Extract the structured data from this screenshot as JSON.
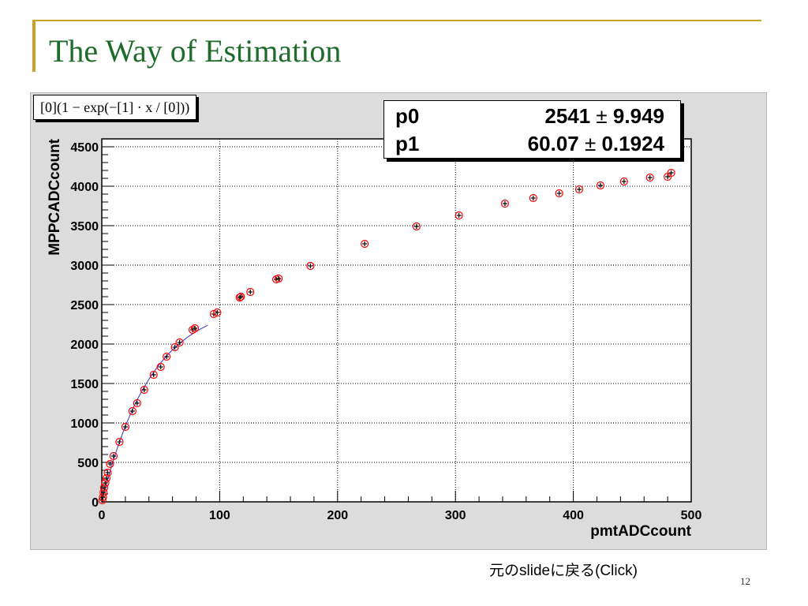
{
  "slide": {
    "title": "The Way of Estimation",
    "page_number": "12",
    "back_link": "元のslideに戻る(Click)",
    "accent_color": "#c9a227",
    "title_color": "#1f6b2c"
  },
  "fit": {
    "formula": "[0](1 − exp(−[1] · x / [0]))",
    "params": [
      {
        "name": "p0",
        "value": "2541",
        "error": "9.949"
      },
      {
        "name": "p1",
        "value": "60.07",
        "error": "0.1924"
      }
    ]
  },
  "chart_data": {
    "type": "scatter",
    "title": "",
    "xlabel": "pmtADCcount",
    "ylabel": "MPPCADCcount",
    "xlim": [
      0,
      500
    ],
    "ylim": [
      0,
      4600
    ],
    "xticks": [
      0,
      100,
      200,
      300,
      400,
      500
    ],
    "yticks": [
      0,
      500,
      1000,
      1500,
      2000,
      2500,
      3000,
      3500,
      4000,
      4500
    ],
    "xtick_labels": [
      "0",
      "100",
      "200",
      "300",
      "400",
      "500"
    ],
    "ytick_labels": [
      "0",
      "500",
      "1000",
      "1500",
      "2000",
      "2500",
      "3000",
      "3500",
      "4000",
      "4500"
    ],
    "grid": true,
    "marker_color": "#ff0000",
    "errorbar_color": "#000000",
    "fit_color": "#3333cc",
    "fit_params": {
      "p0": 2541,
      "p1": 60.07
    },
    "fit_range": [
      0,
      90
    ],
    "series": [
      {
        "x": [
          0.5,
          1,
          1.5,
          2,
          3,
          4,
          5,
          7,
          10,
          15,
          20,
          26,
          30,
          36,
          44,
          50,
          55,
          62,
          66,
          77,
          79,
          95,
          98,
          117,
          118,
          126,
          148,
          150,
          177,
          223,
          267,
          303,
          342,
          366,
          388,
          405,
          423,
          443,
          465,
          480,
          483
        ],
        "y": [
          20,
          60,
          120,
          180,
          240,
          300,
          370,
          480,
          580,
          760,
          950,
          1150,
          1250,
          1420,
          1610,
          1710,
          1840,
          1960,
          2020,
          2180,
          2200,
          2380,
          2400,
          2590,
          2600,
          2660,
          2820,
          2830,
          2990,
          3270,
          3490,
          3630,
          3780,
          3850,
          3910,
          3960,
          4010,
          4060,
          4110,
          4120,
          4170
        ]
      }
    ]
  }
}
